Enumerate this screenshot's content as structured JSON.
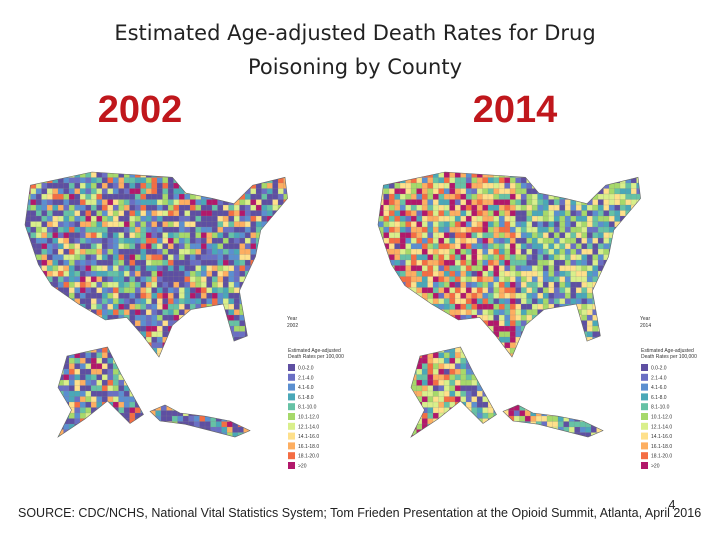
{
  "header": {
    "title_lines": [
      "Estimated Age-adjusted Death Rates for Drug",
      "Poisoning by County"
    ]
  },
  "maps": [
    {
      "year": "2002",
      "map_year_label": [
        "Year",
        "2002"
      ]
    },
    {
      "year": "2014",
      "map_year_label": [
        "Year",
        "2014"
      ]
    }
  ],
  "legend": {
    "title_lines": [
      "Estimated Age-adjusted",
      "Death Rates per 100,000"
    ],
    "items": [
      {
        "label": "0.0-2.0",
        "color": "#5e4fa2"
      },
      {
        "label": "2.1-4.0",
        "color": "#6a6fc4"
      },
      {
        "label": "4.1-6.0",
        "color": "#5b8fd0"
      },
      {
        "label": "6.1-8.0",
        "color": "#4aa8b8"
      },
      {
        "label": "8.1-10.0",
        "color": "#66c2a5"
      },
      {
        "label": "10.1-12.0",
        "color": "#a6d96a"
      },
      {
        "label": "12.1-14.0",
        "color": "#d9ef8b"
      },
      {
        "label": "14.1-16.0",
        "color": "#fee08b"
      },
      {
        "label": "16.1-18.0",
        "color": "#fdae61"
      },
      {
        "label": "18.1-20.0",
        "color": "#f46d43"
      },
      {
        "label": ">20",
        "color": "#b2186b"
      }
    ]
  },
  "footer": {
    "source": "SOURCE: CDC/NCHS, National Vital Statistics System; Tom Frieden Presentation at the Opioid Summit, Atlanta, April 2016",
    "page_number": "4"
  }
}
